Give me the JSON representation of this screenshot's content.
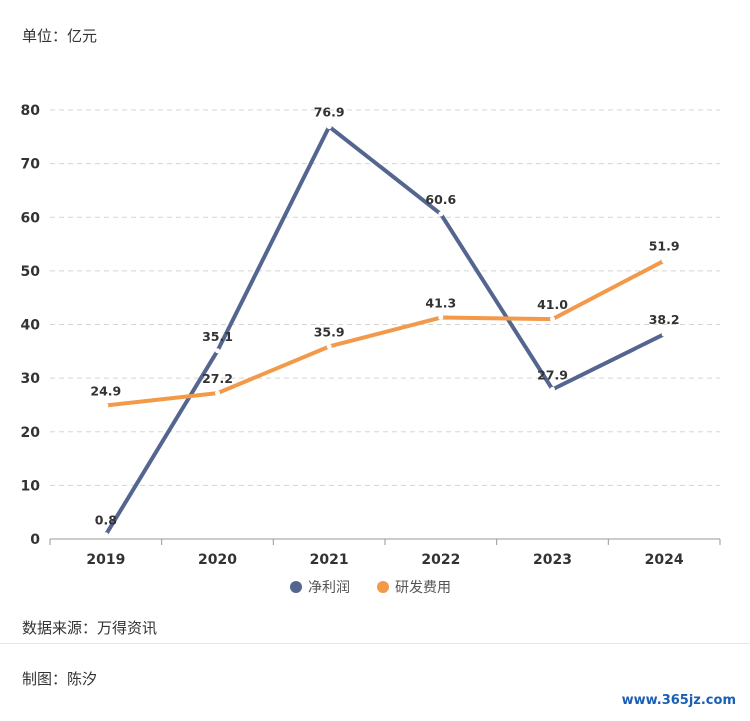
{
  "unit_label": "单位：亿元",
  "source": "数据来源：万得资讯",
  "author": "制图：陈汐",
  "watermark": "www.365jz.com",
  "chart_data": {
    "type": "line",
    "x": [
      "2019",
      "2020",
      "2021",
      "2022",
      "2023",
      "2024"
    ],
    "yticks": [
      0,
      10,
      20,
      30,
      40,
      50,
      60,
      70,
      80
    ],
    "ylim": [
      0,
      80
    ],
    "grid": true,
    "legend_position": "bottom",
    "series": [
      {
        "name": "净利润",
        "color": "#54668f",
        "values": [
          0.8,
          35.1,
          76.9,
          60.6,
          27.9,
          38.2
        ],
        "labels": [
          "0.8",
          "35.1",
          "76.9",
          "60.6",
          "27.9",
          "38.2"
        ]
      },
      {
        "name": "研发费用",
        "color": "#f2994a",
        "values": [
          24.9,
          27.2,
          35.9,
          41.3,
          41.0,
          51.9
        ],
        "labels": [
          "24.9",
          "27.2",
          "35.9",
          "41.3",
          "41.0",
          "51.9"
        ]
      }
    ]
  }
}
